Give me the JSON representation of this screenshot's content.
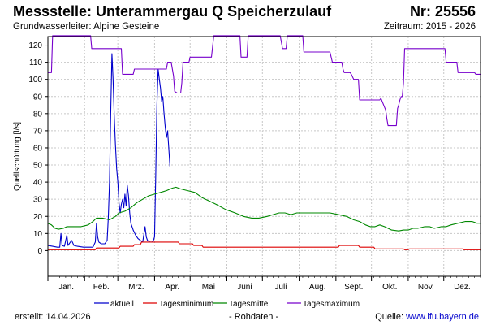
{
  "header": {
    "title": "Messstelle: Unterammergau Q Speicherzulauf",
    "number": "Nr: 25556",
    "aquifer": "Grundwasserleiter: Alpine Gesteine",
    "period": "Zeitraum: 2015 - 2026"
  },
  "footer": {
    "created_label": "erstellt:",
    "created_date": "14.04.2026",
    "data_type": "- Rohdaten -",
    "source_label": "Quelle:",
    "source_link": "www.lfu.bayern.de"
  },
  "chart_data": {
    "type": "line",
    "title": "Messstelle: Unterammergau Q Speicherzulauf",
    "ylabel": "Quellschüttung [l/s]",
    "xlabel": "",
    "ylim": [
      -15,
      125
    ],
    "yticks": [
      0,
      10,
      20,
      30,
      40,
      50,
      60,
      70,
      80,
      90,
      100,
      110,
      120
    ],
    "xlim": [
      0,
      365
    ],
    "grid": true,
    "legend": "bottom",
    "months": [
      {
        "label": "Jan.",
        "start": 0,
        "end": 31
      },
      {
        "label": "Feb.",
        "start": 31,
        "end": 59
      },
      {
        "label": "Mrz.",
        "start": 59,
        "end": 90
      },
      {
        "label": "Apr.",
        "start": 90,
        "end": 120
      },
      {
        "label": "Mai",
        "start": 120,
        "end": 151
      },
      {
        "label": "Juni",
        "start": 151,
        "end": 181
      },
      {
        "label": "Juli",
        "start": 181,
        "end": 212
      },
      {
        "label": "Aug.",
        "start": 212,
        "end": 243
      },
      {
        "label": "Sept.",
        "start": 243,
        "end": 273
      },
      {
        "label": "Okt.",
        "start": 273,
        "end": 304
      },
      {
        "label": "Nov.",
        "start": 304,
        "end": 334
      },
      {
        "label": "Dez.",
        "start": 334,
        "end": 365
      }
    ],
    "series": [
      {
        "name": "aktuell",
        "color": "#0000cc",
        "points": [
          [
            0,
            3
          ],
          [
            4,
            2.5
          ],
          [
            8,
            2
          ],
          [
            10,
            2
          ],
          [
            11,
            10
          ],
          [
            12,
            3
          ],
          [
            14,
            2.5
          ],
          [
            16,
            9
          ],
          [
            17,
            3
          ],
          [
            20,
            6
          ],
          [
            22,
            3
          ],
          [
            25,
            2.5
          ],
          [
            30,
            2
          ],
          [
            38,
            2
          ],
          [
            40,
            5
          ],
          [
            41,
            16
          ],
          [
            42,
            8
          ],
          [
            43,
            5
          ],
          [
            45,
            4
          ],
          [
            48,
            4
          ],
          [
            50,
            6
          ],
          [
            51,
            20
          ],
          [
            52,
            40
          ],
          [
            53,
            80
          ],
          [
            54,
            115
          ],
          [
            55,
            100
          ],
          [
            56,
            78
          ],
          [
            57,
            62
          ],
          [
            58,
            48
          ],
          [
            59,
            40
          ],
          [
            60,
            28
          ],
          [
            61,
            22
          ],
          [
            62,
            27
          ],
          [
            63,
            30
          ],
          [
            64,
            25
          ],
          [
            65,
            33
          ],
          [
            66,
            26
          ],
          [
            67,
            38
          ],
          [
            68,
            32
          ],
          [
            69,
            22
          ],
          [
            70,
            16
          ],
          [
            72,
            12
          ],
          [
            74,
            9
          ],
          [
            76,
            7
          ],
          [
            78,
            6
          ],
          [
            80,
            5
          ],
          [
            82,
            14
          ],
          [
            83,
            8
          ],
          [
            84,
            6
          ],
          [
            86,
            5
          ],
          [
            88,
            5
          ],
          [
            89,
            6
          ],
          [
            90,
            8
          ],
          [
            91,
            45
          ],
          [
            92,
            85
          ],
          [
            93,
            106
          ],
          [
            94,
            100
          ],
          [
            95,
            95
          ],
          [
            96,
            87
          ],
          [
            97,
            90
          ],
          [
            98,
            80
          ],
          [
            99,
            72
          ],
          [
            100,
            66
          ],
          [
            101,
            70
          ],
          [
            102,
            60
          ],
          [
            103,
            49
          ]
        ]
      },
      {
        "name": "Tagesminimum",
        "color": "#dd0000",
        "points": [
          [
            0,
            0.5
          ],
          [
            40,
            0.5
          ],
          [
            41,
            1.5
          ],
          [
            60,
            1.5
          ],
          [
            61,
            2.5
          ],
          [
            72,
            2.5
          ],
          [
            73,
            3.5
          ],
          [
            78,
            3.5
          ],
          [
            79,
            5
          ],
          [
            110,
            5
          ],
          [
            111,
            4
          ],
          [
            122,
            4
          ],
          [
            123,
            3
          ],
          [
            130,
            3
          ],
          [
            131,
            2
          ],
          [
            245,
            2
          ],
          [
            246,
            3
          ],
          [
            262,
            3
          ],
          [
            263,
            2
          ],
          [
            275,
            2
          ],
          [
            276,
            1
          ],
          [
            300,
            1
          ],
          [
            301,
            0.5
          ],
          [
            304,
            0.5
          ],
          [
            305,
            1
          ],
          [
            350,
            1
          ],
          [
            351,
            0.5
          ],
          [
            365,
            0.5
          ]
        ]
      },
      {
        "name": "Tagesmittel",
        "color": "#008800",
        "points": [
          [
            0,
            16
          ],
          [
            3,
            15
          ],
          [
            6,
            13
          ],
          [
            9,
            12.5
          ],
          [
            13,
            13
          ],
          [
            16,
            14
          ],
          [
            22,
            14
          ],
          [
            28,
            14
          ],
          [
            34,
            15
          ],
          [
            38,
            17
          ],
          [
            41,
            19
          ],
          [
            46,
            19
          ],
          [
            52,
            18
          ],
          [
            57,
            20
          ],
          [
            60,
            22
          ],
          [
            65,
            23
          ],
          [
            70,
            25
          ],
          [
            75,
            28
          ],
          [
            80,
            30
          ],
          [
            85,
            32
          ],
          [
            90,
            33
          ],
          [
            95,
            34
          ],
          [
            100,
            35
          ],
          [
            105,
            36.5
          ],
          [
            108,
            37
          ],
          [
            112,
            36
          ],
          [
            118,
            35
          ],
          [
            124,
            34
          ],
          [
            130,
            31
          ],
          [
            136,
            29
          ],
          [
            142,
            27
          ],
          [
            150,
            24
          ],
          [
            158,
            22
          ],
          [
            165,
            20
          ],
          [
            172,
            19
          ],
          [
            178,
            19
          ],
          [
            185,
            20
          ],
          [
            190,
            21
          ],
          [
            195,
            22
          ],
          [
            200,
            22
          ],
          [
            205,
            21
          ],
          [
            210,
            22
          ],
          [
            220,
            22
          ],
          [
            230,
            22
          ],
          [
            238,
            22
          ],
          [
            245,
            21
          ],
          [
            252,
            20
          ],
          [
            258,
            18
          ],
          [
            263,
            17
          ],
          [
            268,
            15
          ],
          [
            272,
            14
          ],
          [
            276,
            14
          ],
          [
            280,
            15
          ],
          [
            284,
            14
          ],
          [
            290,
            12
          ],
          [
            296,
            11.5
          ],
          [
            300,
            12
          ],
          [
            304,
            12
          ],
          [
            308,
            13
          ],
          [
            312,
            13
          ],
          [
            318,
            14
          ],
          [
            322,
            14
          ],
          [
            326,
            13
          ],
          [
            332,
            14
          ],
          [
            336,
            14
          ],
          [
            340,
            15
          ],
          [
            346,
            16
          ],
          [
            352,
            17
          ],
          [
            358,
            17
          ],
          [
            362,
            16
          ],
          [
            365,
            16
          ]
        ]
      },
      {
        "name": "Tagesmaximum",
        "color": "#7700cc",
        "points": [
          [
            0,
            104
          ],
          [
            3,
            104
          ],
          [
            4,
            126
          ],
          [
            20,
            126
          ],
          [
            30,
            126
          ],
          [
            36,
            126
          ],
          [
            37,
            118
          ],
          [
            56,
            118
          ],
          [
            62,
            118
          ],
          [
            63,
            103
          ],
          [
            72,
            103
          ],
          [
            73,
            106
          ],
          [
            100,
            106
          ],
          [
            101,
            110
          ],
          [
            104,
            110
          ],
          [
            106,
            102
          ],
          [
            107,
            93
          ],
          [
            109,
            92
          ],
          [
            112,
            92
          ],
          [
            113,
            98
          ],
          [
            114,
            110
          ],
          [
            119,
            110
          ],
          [
            120,
            113
          ],
          [
            138,
            113
          ],
          [
            140,
            126
          ],
          [
            160,
            126
          ],
          [
            162,
            126
          ],
          [
            163,
            113
          ],
          [
            168,
            113
          ],
          [
            169,
            126
          ],
          [
            196,
            126
          ],
          [
            198,
            118
          ],
          [
            201,
            118
          ],
          [
            202,
            126
          ],
          [
            215,
            126
          ],
          [
            216,
            116
          ],
          [
            238,
            116
          ],
          [
            240,
            110
          ],
          [
            248,
            110
          ],
          [
            249,
            106
          ],
          [
            250,
            104
          ],
          [
            255,
            104
          ],
          [
            256,
            103
          ],
          [
            258,
            100
          ],
          [
            262,
            100
          ],
          [
            263,
            88
          ],
          [
            280,
            88
          ],
          [
            281,
            89
          ],
          [
            285,
            82
          ],
          [
            286,
            77
          ],
          [
            287,
            73
          ],
          [
            294,
            73
          ],
          [
            295,
            83
          ],
          [
            296,
            85
          ],
          [
            297,
            88
          ],
          [
            298,
            90
          ],
          [
            299,
            90
          ],
          [
            300,
            98
          ],
          [
            301,
            118
          ],
          [
            335,
            118
          ],
          [
            336,
            110
          ],
          [
            345,
            110
          ],
          [
            346,
            104
          ],
          [
            360,
            104
          ],
          [
            361,
            103
          ],
          [
            365,
            103
          ]
        ]
      }
    ]
  }
}
